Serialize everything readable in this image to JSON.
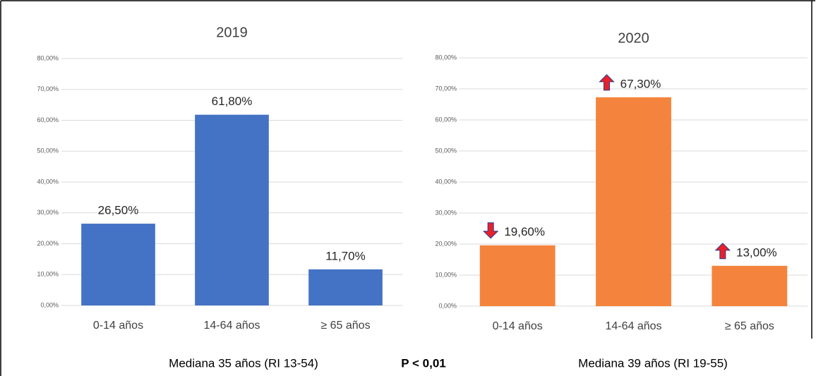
{
  "chart_data": [
    {
      "type": "bar",
      "title": "2019",
      "categories": [
        "0-14 años",
        "14-64 años",
        "≥ 65 años"
      ],
      "values": [
        26.5,
        61.8,
        11.7
      ],
      "value_labels": [
        "26,50%",
        "61,80%",
        "11,70%"
      ],
      "color": "#4472c4",
      "ylim": [
        0,
        80
      ],
      "yticks": [
        {
          "value": 0,
          "label": "0,00%"
        },
        {
          "value": 10,
          "label": "10,00%"
        },
        {
          "value": 20,
          "label": "20,00%"
        },
        {
          "value": 30,
          "label": "30,00%"
        },
        {
          "value": 40,
          "label": "40,00%"
        },
        {
          "value": 50,
          "label": "50,00%"
        },
        {
          "value": 60,
          "label": "60,00%"
        },
        {
          "value": 70,
          "label": "70,00%"
        },
        {
          "value": 80,
          "label": "80,00%"
        }
      ],
      "grid": true,
      "annotation": "Mediana 35 años (RI 13-54)"
    },
    {
      "type": "bar",
      "title": "2020",
      "categories": [
        "0-14 años",
        "14-64 años",
        "≥ 65 años"
      ],
      "values": [
        19.6,
        67.3,
        13.0
      ],
      "value_labels": [
        "19,60%",
        "67,30%",
        "13,00%"
      ],
      "color": "#f4843d",
      "ylim": [
        0,
        80
      ],
      "yticks": [
        {
          "value": 0,
          "label": "0,00%"
        },
        {
          "value": 10,
          "label": "10,00%"
        },
        {
          "value": 20,
          "label": "20,00%"
        },
        {
          "value": 30,
          "label": "30,00%"
        },
        {
          "value": 40,
          "label": "40,00%"
        },
        {
          "value": 50,
          "label": "50,00%"
        },
        {
          "value": 60,
          "label": "60,00%"
        },
        {
          "value": 70,
          "label": "70,00%"
        },
        {
          "value": 80,
          "label": "80,00%"
        }
      ],
      "grid": true,
      "arrows": [
        "down",
        "up",
        "up"
      ],
      "annotation": "Mediana 39 años (RI 19-55)"
    }
  ],
  "note": "P < 0,01"
}
